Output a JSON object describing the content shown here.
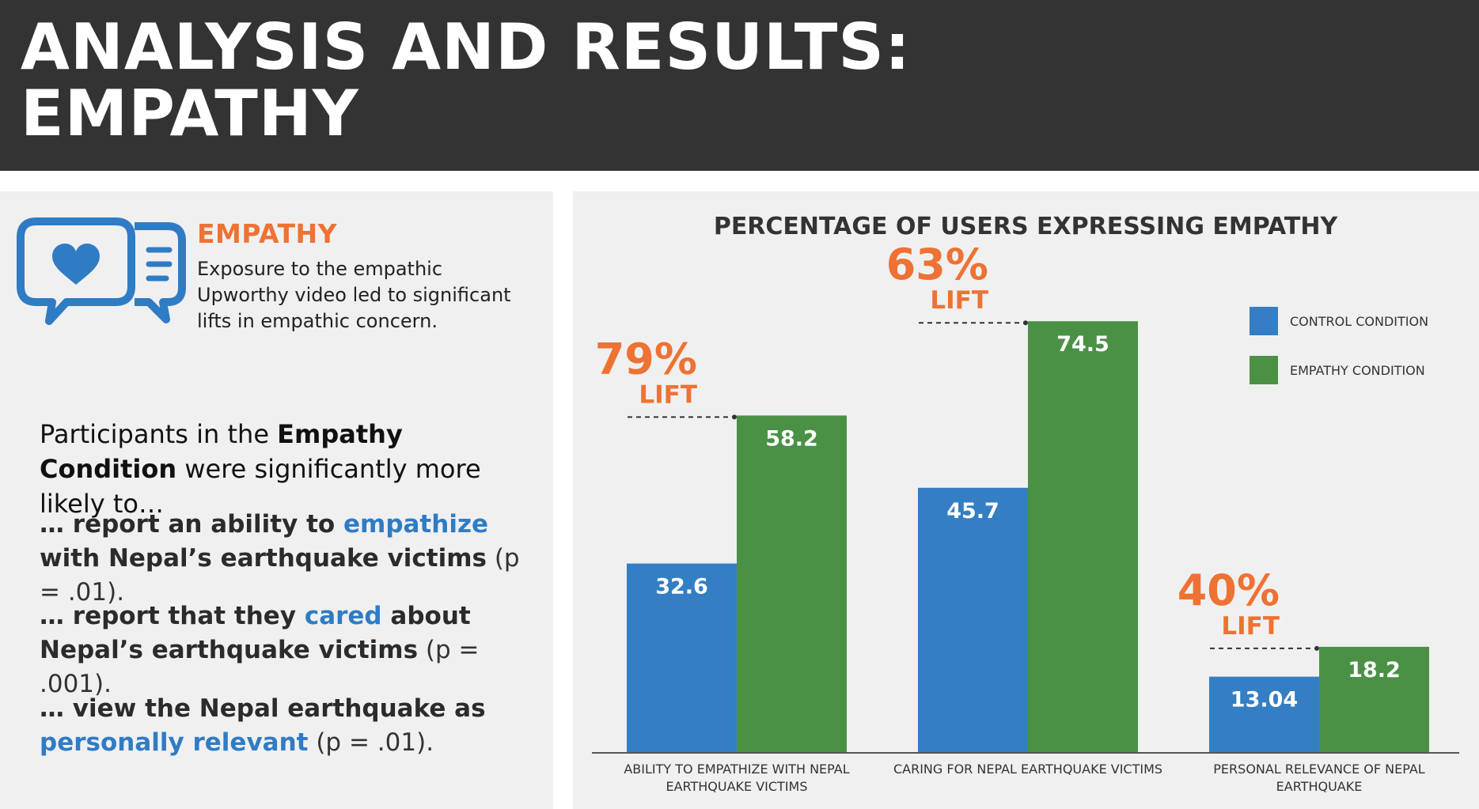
{
  "header": {
    "title_line1": "ANALYSIS AND RESULTS:",
    "title_line2": "EMPATHY"
  },
  "left_panel": {
    "icon": "chat-bubbles-heart-icon",
    "heading": "EMPATHY",
    "description": "Exposure to the empathic Upworthy video led to significant lifts in empathic concern.",
    "intro_prefix": "Participants in the ",
    "intro_bold": "Empathy Condition",
    "intro_suffix": " were significantly more likely to…",
    "findings": [
      {
        "bold_pre": "… report an ability to ",
        "highlight": "empathize",
        "bold_post": " with Nepal’s earthquake victims",
        "p_value": " (p = .01)."
      },
      {
        "bold_pre": "… report that they ",
        "highlight": "cared",
        "bold_post": " about Nepal’s earthquake victims",
        "p_value": " (p = .001)."
      },
      {
        "bold_pre": "… view the Nepal earthquake as ",
        "highlight": "personally relevant",
        "bold_post": "",
        "p_value": " (p = .01)."
      }
    ]
  },
  "colors": {
    "header_bg": "#333333",
    "accent_orange": "#ee7233",
    "control_blue": "#347fc4",
    "empathy_green": "#4a9146",
    "highlight_blue": "#2f7cc5"
  },
  "chart_data": {
    "type": "bar",
    "title": "PERCENTAGE OF USERS EXPRESSING EMPATHY",
    "categories": [
      [
        "ABILITY TO EMPATHIZE WITH NEPAL",
        "EARTHQUAKE VICTIMS"
      ],
      [
        "CARING FOR NEPAL EARTHQUAKE VICTIMS"
      ],
      [
        "PERSONAL RELEVANCE OF NEPAL",
        "EARTHQUAKE"
      ]
    ],
    "series": [
      {
        "name": "CONTROL CONDITION",
        "values": [
          32.6,
          45.7,
          13.04
        ],
        "labels": [
          "32.6",
          "45.7",
          "13.04"
        ],
        "color": "#347fc4"
      },
      {
        "name": "EMPATHY CONDITION",
        "values": [
          58.2,
          74.5,
          18.2
        ],
        "labels": [
          "58.2",
          "74.5",
          "18.2"
        ],
        "color": "#4a9146"
      }
    ],
    "annotations": [
      {
        "pct": "79%",
        "word": "LIFT"
      },
      {
        "pct": "63%",
        "word": "LIFT"
      },
      {
        "pct": "40%",
        "word": "LIFT"
      }
    ],
    "ylim": [
      0,
      80
    ],
    "legend_position": "top-right",
    "grid": false
  }
}
